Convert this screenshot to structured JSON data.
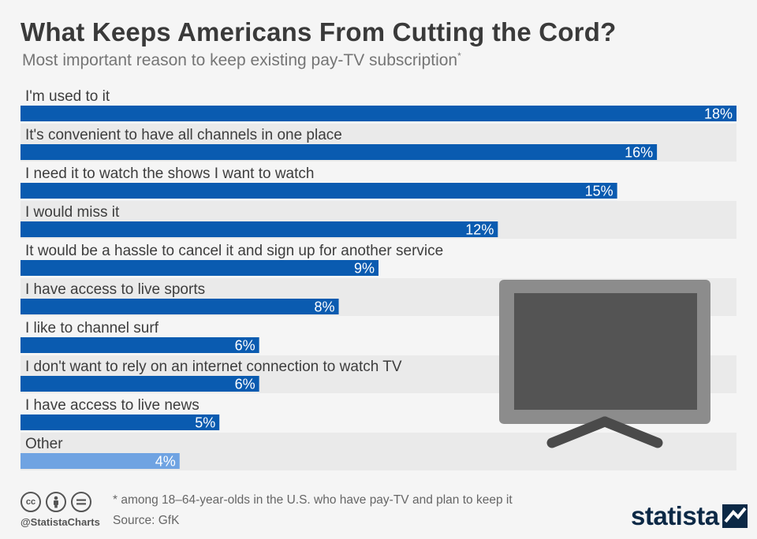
{
  "header": {
    "title": "What Keeps Americans From Cutting the Cord?",
    "subtitle": "Most important reason to keep existing pay-TV subscription",
    "subtitle_marker": "*"
  },
  "chart_data": {
    "type": "bar",
    "orientation": "horizontal",
    "categories": [
      "I'm used to it",
      "It's convenient to have all channels in one place",
      "I need it to watch the shows I want to watch",
      "I would miss it",
      "It would be a hassle to cancel it and sign up for another service",
      "I have access to live sports",
      "I like to channel surf",
      "I don't want to rely on an internet connection to watch TV",
      "I have access to live news",
      "Other"
    ],
    "values": [
      18,
      16,
      15,
      12,
      9,
      8,
      6,
      6,
      5,
      4
    ],
    "value_labels": [
      "18%",
      "16%",
      "15%",
      "12%",
      "9%",
      "8%",
      "6%",
      "6%",
      "5%",
      "4%"
    ],
    "unit": "%",
    "xlim": [
      0,
      18
    ],
    "grid": false,
    "colors": {
      "primary": "#0a5bb0",
      "highlight": "#6fa3e2",
      "band_alt": "#eaeaea",
      "band": "#f5f5f5"
    },
    "highlight_index": 9
  },
  "footer": {
    "note": "* among 18–64-year-olds in the U.S. who have pay-TV and plan to keep it",
    "source": "Source: GfK",
    "handle": "@StatistaCharts",
    "license_icons": [
      "cc-icon",
      "by-icon",
      "nd-icon"
    ],
    "brand": "statista"
  },
  "illustration": {
    "icon": "television-icon",
    "colors": {
      "frame": "#8c8c8c",
      "screen": "#545454",
      "stand": "#4a4a4a"
    }
  }
}
